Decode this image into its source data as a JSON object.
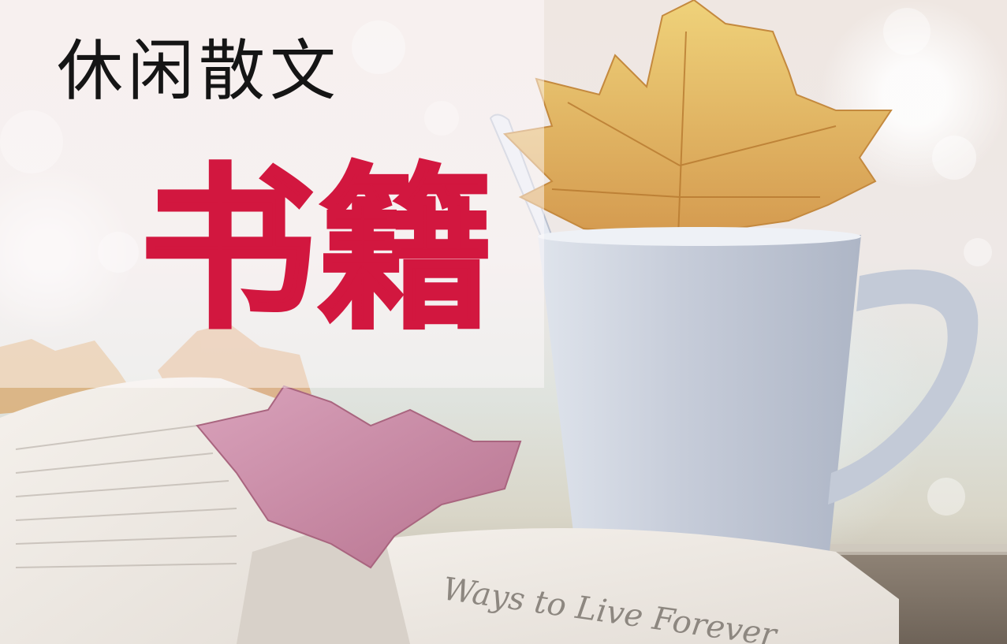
{
  "banner": {
    "subtitle": "休闲散文",
    "title": "书籍",
    "title_color": "#d2173f",
    "subtitle_color": "#151515"
  },
  "photo": {
    "book_page_text": "Ways to Live Forever",
    "leaf_colors": [
      "#e2b356",
      "#c98aa6",
      "#d79a6a"
    ],
    "mug_color": "#c9d0dc"
  }
}
